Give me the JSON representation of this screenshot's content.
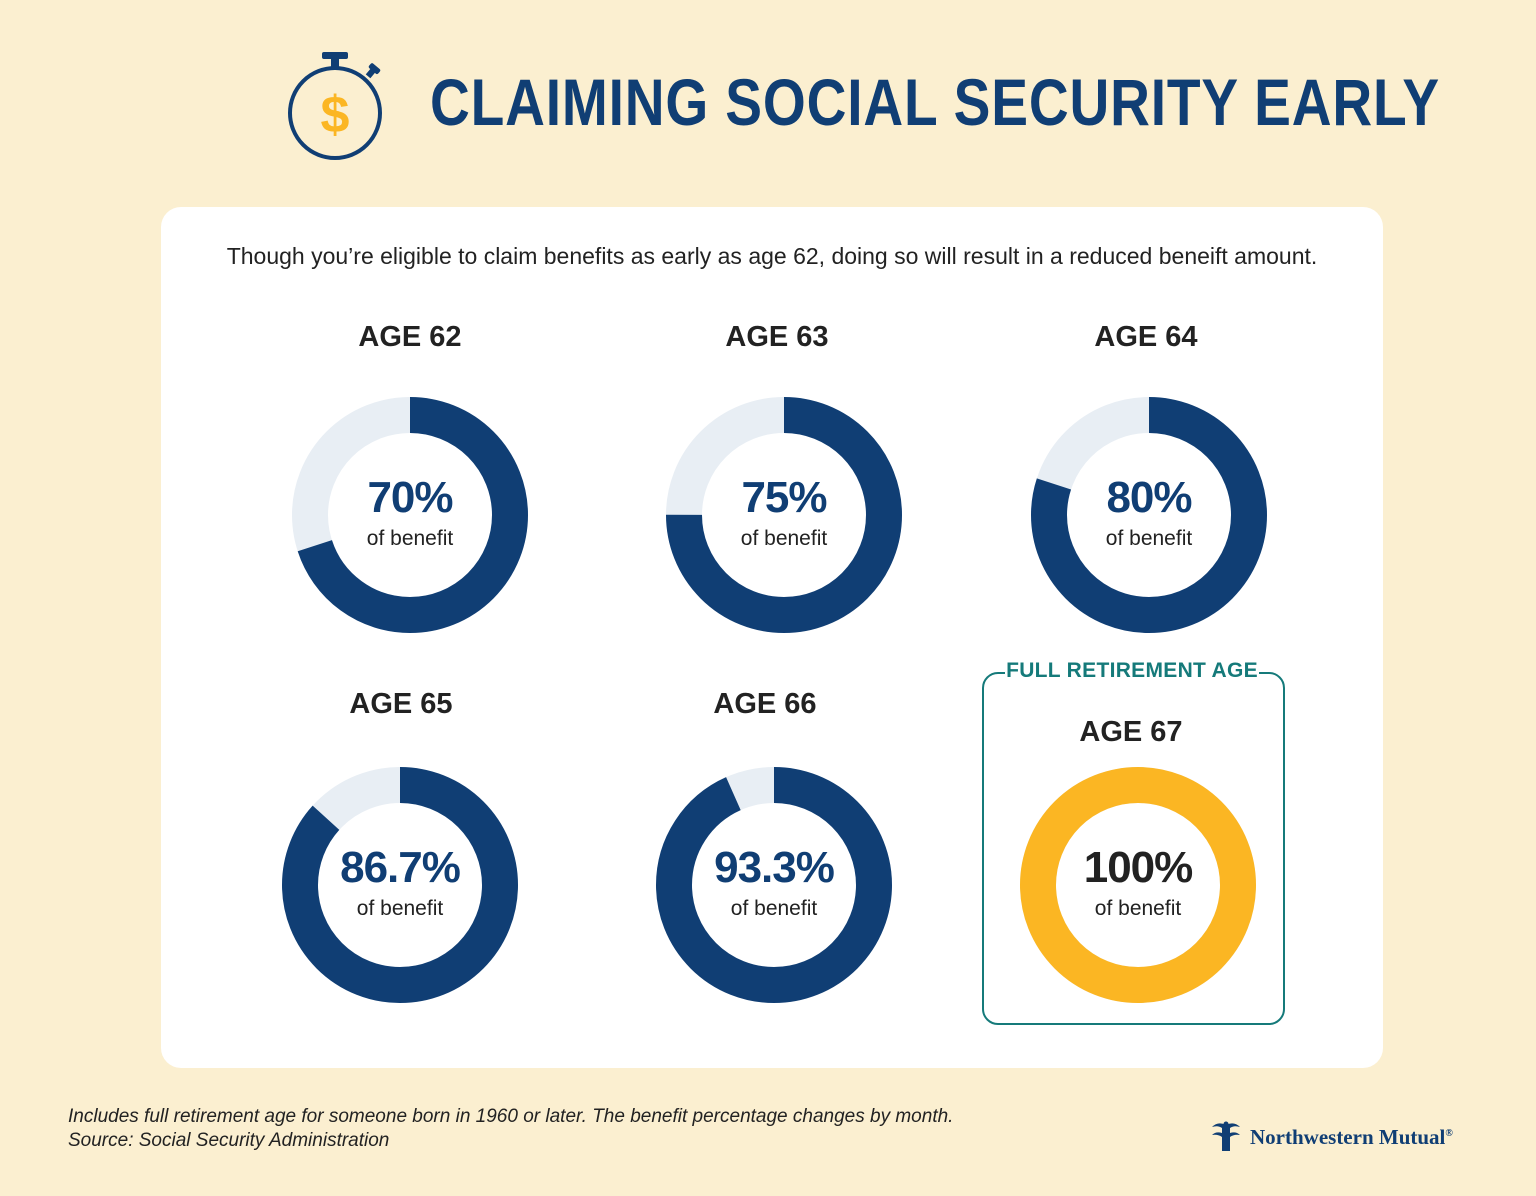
{
  "header": {
    "title": "CLAIMING SOCIAL SECURITY EARLY",
    "icon": "stopwatch-dollar-icon"
  },
  "card": {
    "intro": "Though you’re eligible to claim benefits as early as age 62, doing so will result in a reduced beneift amount."
  },
  "colors": {
    "background": "#fbefd0",
    "navy": "#103e74",
    "track": "#e8eef4",
    "gold": "#fbb623",
    "teal": "#157a7a"
  },
  "chart_data": {
    "type": "pie",
    "variant": "donut",
    "categories": [
      "AGE 62",
      "AGE 63",
      "AGE 64",
      "AGE 65",
      "AGE 66",
      "AGE 67"
    ],
    "values": [
      70,
      75,
      80,
      86.7,
      93.3,
      100
    ],
    "labels": [
      "70%",
      "75%",
      "80%",
      "86.7%",
      "93.3%",
      "100%"
    ],
    "sublabel": "of benefit",
    "highlight": {
      "index": 5,
      "label": "FULL RETIREMENT AGE",
      "color": "#fbb623"
    }
  },
  "footer": {
    "note": "Includes full retirement age for someone born in 1960 or later. The benefit percentage changes by month.",
    "source": "Source: Social Security Administration",
    "brand": "Northwestern Mutual",
    "brand_mark": "®"
  }
}
